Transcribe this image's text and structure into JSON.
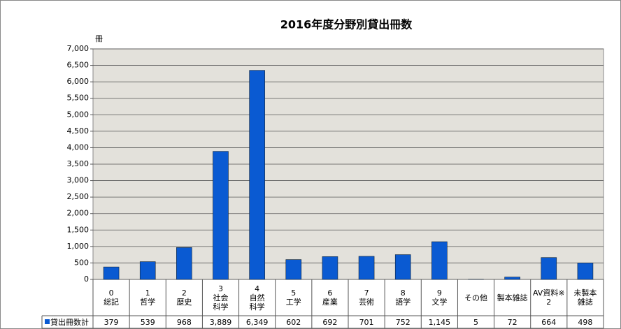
{
  "chart_data": {
    "type": "bar",
    "title": "2016年度分野別貸出冊数",
    "y_label": "冊",
    "categories": [
      "0\n総記",
      "1\n哲学",
      "2\n歴史",
      "3\n社会\n科学",
      "4\n自然\n科学",
      "5\n工学",
      "6\n産業",
      "7\n芸術",
      "8\n語学",
      "9\n文学",
      "その他",
      "製本雑誌",
      "AV資料※\n2",
      "未製本\n雑誌"
    ],
    "series": [
      {
        "name": "貸出冊数計",
        "color": "#0a5ad2",
        "values": [
          379,
          539,
          968,
          3889,
          6349,
          602,
          692,
          701,
          752,
          1145,
          5,
          72,
          664,
          498
        ],
        "value_labels": [
          "379",
          "539",
          "968",
          "3,889",
          "6,349",
          "602",
          "692",
          "701",
          "752",
          "1,145",
          "5",
          "72",
          "664",
          "498"
        ]
      }
    ],
    "ylim": [
      0,
      7000
    ],
    "yticks": [
      0,
      500,
      {
        "value": 1000,
        "label": "1,000"
      },
      {
        "value": 1500,
        "label": "1,500"
      },
      {
        "value": 2000,
        "label": "2,000"
      },
      {
        "value": 2500,
        "label": "2,500"
      },
      {
        "value": 3000,
        "label": "3,000"
      },
      {
        "value": 3500,
        "label": "3,500"
      },
      {
        "value": 4000,
        "label": "4,000"
      },
      {
        "value": 4500,
        "label": "4,500"
      },
      {
        "value": 5000,
        "label": "5,000"
      },
      {
        "value": 5500,
        "label": "5,500"
      },
      {
        "value": 6000,
        "label": "6,000"
      },
      {
        "value": 6500,
        "label": "6,500"
      },
      {
        "value": 7000,
        "label": "7,000"
      }
    ],
    "grid": true
  }
}
